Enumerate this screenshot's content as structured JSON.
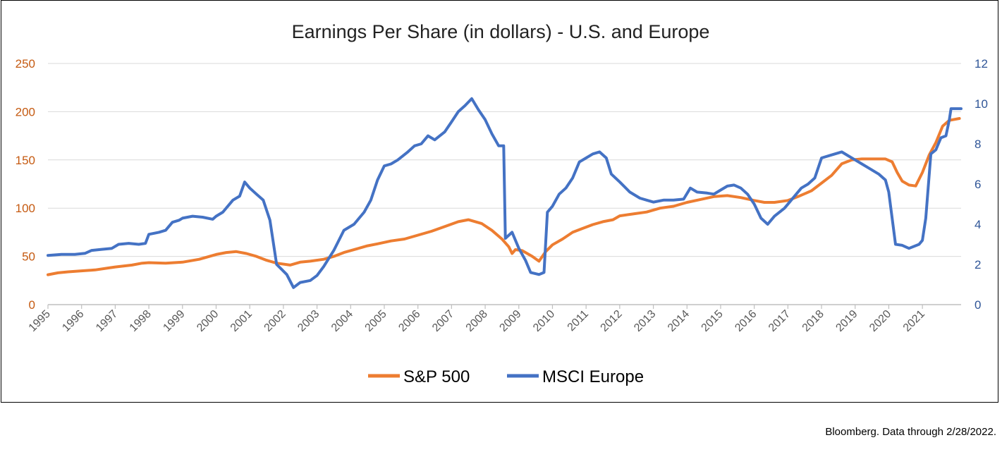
{
  "chart_data": {
    "type": "line",
    "title": "Earnings Per Share (in dollars) - U.S. and Europe",
    "y_left": {
      "min": 0,
      "max": 250,
      "ticks": [
        0,
        50,
        100,
        150,
        200,
        250
      ],
      "color": "#c55a11"
    },
    "y_right": {
      "min": 0,
      "max": 12,
      "ticks": [
        0,
        2,
        4,
        6,
        8,
        10,
        12
      ],
      "color": "#2f5597"
    },
    "x": {
      "min": 1995,
      "max": 2022.15,
      "tick_labels": [
        "1995",
        "1996",
        "1997",
        "1998",
        "1999",
        "2000",
        "2001",
        "2002",
        "2003",
        "2004",
        "2005",
        "2006",
        "2007",
        "2008",
        "2009",
        "2010",
        "2011",
        "2012",
        "2013",
        "2014",
        "2015",
        "2016",
        "2017",
        "2018",
        "2019",
        "2020",
        "2021"
      ]
    },
    "grid": true,
    "legend_position": "bottom-center",
    "series": [
      {
        "name": "S&P 500",
        "axis": "left",
        "color": "#ed7d31",
        "points": [
          [
            1995.0,
            31
          ],
          [
            1995.3,
            33
          ],
          [
            1995.6,
            34
          ],
          [
            1996.0,
            35
          ],
          [
            1996.4,
            36
          ],
          [
            1996.8,
            38
          ],
          [
            1997.0,
            39
          ],
          [
            1997.5,
            41
          ],
          [
            1997.8,
            43
          ],
          [
            1998.0,
            43.5
          ],
          [
            1998.5,
            43
          ],
          [
            1999.0,
            44
          ],
          [
            1999.5,
            47
          ],
          [
            2000.0,
            52
          ],
          [
            2000.3,
            54
          ],
          [
            2000.6,
            55
          ],
          [
            2000.9,
            53
          ],
          [
            2001.2,
            50
          ],
          [
            2001.5,
            46
          ],
          [
            2001.8,
            43
          ],
          [
            2002.2,
            41
          ],
          [
            2002.5,
            44
          ],
          [
            2002.8,
            45
          ],
          [
            2003.2,
            47
          ],
          [
            2003.5,
            50
          ],
          [
            2003.8,
            54
          ],
          [
            2004.2,
            58
          ],
          [
            2004.5,
            61
          ],
          [
            2004.8,
            63
          ],
          [
            2005.2,
            66
          ],
          [
            2005.6,
            68
          ],
          [
            2006.0,
            72
          ],
          [
            2006.4,
            76
          ],
          [
            2006.8,
            81
          ],
          [
            2007.2,
            86
          ],
          [
            2007.5,
            88
          ],
          [
            2007.9,
            84
          ],
          [
            2008.2,
            77
          ],
          [
            2008.5,
            68
          ],
          [
            2008.7,
            60
          ],
          [
            2008.8,
            53
          ],
          [
            2008.9,
            57
          ],
          [
            2009.1,
            56
          ],
          [
            2009.4,
            50
          ],
          [
            2009.6,
            45
          ],
          [
            2009.8,
            55
          ],
          [
            2010.0,
            62
          ],
          [
            2010.3,
            68
          ],
          [
            2010.6,
            75
          ],
          [
            2010.9,
            79
          ],
          [
            2011.2,
            83
          ],
          [
            2011.5,
            86
          ],
          [
            2011.8,
            88
          ],
          [
            2012.0,
            92
          ],
          [
            2012.4,
            94
          ],
          [
            2012.8,
            96
          ],
          [
            2013.2,
            100
          ],
          [
            2013.6,
            102
          ],
          [
            2014.0,
            106
          ],
          [
            2014.4,
            109
          ],
          [
            2014.8,
            112
          ],
          [
            2015.2,
            113
          ],
          [
            2015.6,
            111
          ],
          [
            2016.0,
            108
          ],
          [
            2016.3,
            106
          ],
          [
            2016.6,
            106
          ],
          [
            2017.0,
            108
          ],
          [
            2017.3,
            112
          ],
          [
            2017.7,
            118
          ],
          [
            2018.0,
            126
          ],
          [
            2018.3,
            134
          ],
          [
            2018.6,
            146
          ],
          [
            2018.9,
            150
          ],
          [
            2019.2,
            151
          ],
          [
            2019.6,
            151
          ],
          [
            2019.9,
            151
          ],
          [
            2020.1,
            148
          ],
          [
            2020.25,
            137
          ],
          [
            2020.4,
            128
          ],
          [
            2020.6,
            124
          ],
          [
            2020.8,
            123
          ],
          [
            2021.0,
            137
          ],
          [
            2021.2,
            155
          ],
          [
            2021.4,
            168
          ],
          [
            2021.6,
            185
          ],
          [
            2021.8,
            191
          ],
          [
            2022.1,
            193
          ]
        ]
      },
      {
        "name": "MSCI Europe",
        "axis": "right",
        "color": "#4472c4",
        "points": [
          [
            1995.0,
            2.45
          ],
          [
            1995.4,
            2.5
          ],
          [
            1995.8,
            2.5
          ],
          [
            1996.1,
            2.55
          ],
          [
            1996.3,
            2.7
          ],
          [
            1996.6,
            2.75
          ],
          [
            1996.9,
            2.8
          ],
          [
            1997.1,
            3.0
          ],
          [
            1997.4,
            3.05
          ],
          [
            1997.7,
            3.0
          ],
          [
            1997.9,
            3.05
          ],
          [
            1998.0,
            3.5
          ],
          [
            1998.3,
            3.6
          ],
          [
            1998.5,
            3.7
          ],
          [
            1998.7,
            4.1
          ],
          [
            1998.9,
            4.2
          ],
          [
            1999.0,
            4.3
          ],
          [
            1999.3,
            4.4
          ],
          [
            1999.6,
            4.35
          ],
          [
            1999.9,
            4.25
          ],
          [
            2000.0,
            4.4
          ],
          [
            2000.2,
            4.6
          ],
          [
            2000.5,
            5.2
          ],
          [
            2000.7,
            5.4
          ],
          [
            2000.85,
            6.1
          ],
          [
            2001.0,
            5.8
          ],
          [
            2001.2,
            5.5
          ],
          [
            2001.4,
            5.2
          ],
          [
            2001.6,
            4.2
          ],
          [
            2001.8,
            2.0
          ],
          [
            2001.95,
            1.75
          ],
          [
            2002.1,
            1.5
          ],
          [
            2002.3,
            0.85
          ],
          [
            2002.5,
            1.1
          ],
          [
            2002.8,
            1.2
          ],
          [
            2003.0,
            1.45
          ],
          [
            2003.2,
            1.9
          ],
          [
            2003.5,
            2.7
          ],
          [
            2003.8,
            3.7
          ],
          [
            2004.1,
            4.0
          ],
          [
            2004.4,
            4.6
          ],
          [
            2004.6,
            5.2
          ],
          [
            2004.8,
            6.2
          ],
          [
            2005.0,
            6.9
          ],
          [
            2005.2,
            7.0
          ],
          [
            2005.4,
            7.2
          ],
          [
            2005.7,
            7.6
          ],
          [
            2005.9,
            7.9
          ],
          [
            2006.1,
            8.0
          ],
          [
            2006.3,
            8.4
          ],
          [
            2006.5,
            8.2
          ],
          [
            2006.8,
            8.6
          ],
          [
            2007.0,
            9.1
          ],
          [
            2007.2,
            9.6
          ],
          [
            2007.4,
            9.9
          ],
          [
            2007.6,
            10.25
          ],
          [
            2007.8,
            9.7
          ],
          [
            2008.0,
            9.2
          ],
          [
            2008.2,
            8.5
          ],
          [
            2008.4,
            7.9
          ],
          [
            2008.55,
            7.9
          ],
          [
            2008.6,
            3.3
          ],
          [
            2008.8,
            3.6
          ],
          [
            2009.0,
            2.8
          ],
          [
            2009.2,
            2.2
          ],
          [
            2009.35,
            1.6
          ],
          [
            2009.6,
            1.5
          ],
          [
            2009.75,
            1.6
          ],
          [
            2009.85,
            4.6
          ],
          [
            2010.0,
            4.9
          ],
          [
            2010.2,
            5.5
          ],
          [
            2010.4,
            5.8
          ],
          [
            2010.6,
            6.3
          ],
          [
            2010.8,
            7.1
          ],
          [
            2011.0,
            7.3
          ],
          [
            2011.2,
            7.5
          ],
          [
            2011.4,
            7.6
          ],
          [
            2011.6,
            7.3
          ],
          [
            2011.75,
            6.5
          ],
          [
            2012.0,
            6.1
          ],
          [
            2012.3,
            5.6
          ],
          [
            2012.6,
            5.3
          ],
          [
            2012.8,
            5.2
          ],
          [
            2013.0,
            5.1
          ],
          [
            2013.3,
            5.2
          ],
          [
            2013.6,
            5.2
          ],
          [
            2013.9,
            5.25
          ],
          [
            2014.1,
            5.8
          ],
          [
            2014.3,
            5.6
          ],
          [
            2014.6,
            5.55
          ],
          [
            2014.8,
            5.5
          ],
          [
            2015.0,
            5.7
          ],
          [
            2015.2,
            5.9
          ],
          [
            2015.4,
            5.95
          ],
          [
            2015.6,
            5.8
          ],
          [
            2015.8,
            5.5
          ],
          [
            2016.0,
            5.0
          ],
          [
            2016.2,
            4.3
          ],
          [
            2016.4,
            4.0
          ],
          [
            2016.6,
            4.4
          ],
          [
            2016.9,
            4.8
          ],
          [
            2017.1,
            5.2
          ],
          [
            2017.4,
            5.8
          ],
          [
            2017.6,
            6.0
          ],
          [
            2017.8,
            6.3
          ],
          [
            2018.0,
            7.3
          ],
          [
            2018.3,
            7.45
          ],
          [
            2018.6,
            7.6
          ],
          [
            2018.8,
            7.4
          ],
          [
            2019.0,
            7.2
          ],
          [
            2019.2,
            7.0
          ],
          [
            2019.4,
            6.8
          ],
          [
            2019.7,
            6.5
          ],
          [
            2019.9,
            6.2
          ],
          [
            2020.0,
            5.6
          ],
          [
            2020.2,
            3.0
          ],
          [
            2020.4,
            2.95
          ],
          [
            2020.6,
            2.8
          ],
          [
            2020.9,
            3.0
          ],
          [
            2021.0,
            3.2
          ],
          [
            2021.1,
            4.3
          ],
          [
            2021.25,
            7.5
          ],
          [
            2021.4,
            7.7
          ],
          [
            2021.55,
            8.3
          ],
          [
            2021.7,
            8.4
          ],
          [
            2021.8,
            9.2
          ],
          [
            2021.85,
            9.75
          ],
          [
            2022.15,
            9.75
          ]
        ]
      }
    ]
  },
  "source_note": "Bloomberg. Data through 2/28/2022."
}
